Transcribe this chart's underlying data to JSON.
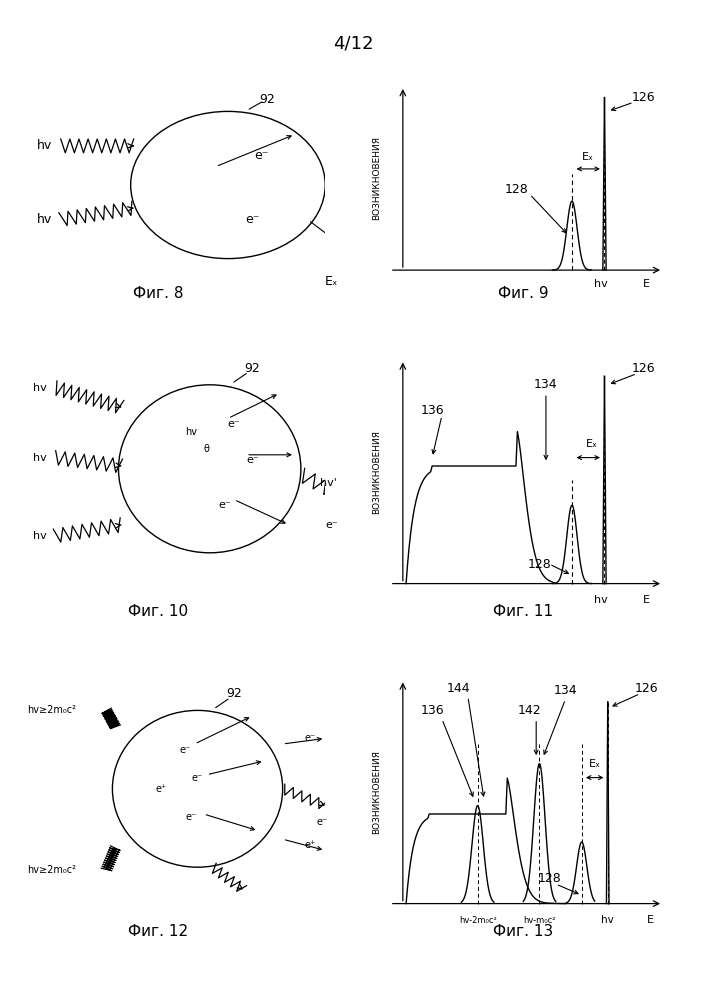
{
  "page_label": "4/12",
  "fig_labels": [
    "Фиг. 8",
    "Фиг. 9",
    "Фиг. 10",
    "Фиг. 11",
    "Фиг. 12",
    "Фиг. 13"
  ],
  "bg_color": "#ffffff",
  "line_color": "#000000",
  "font_size_label": 11,
  "font_size_annot": 9,
  "font_size_page": 13
}
